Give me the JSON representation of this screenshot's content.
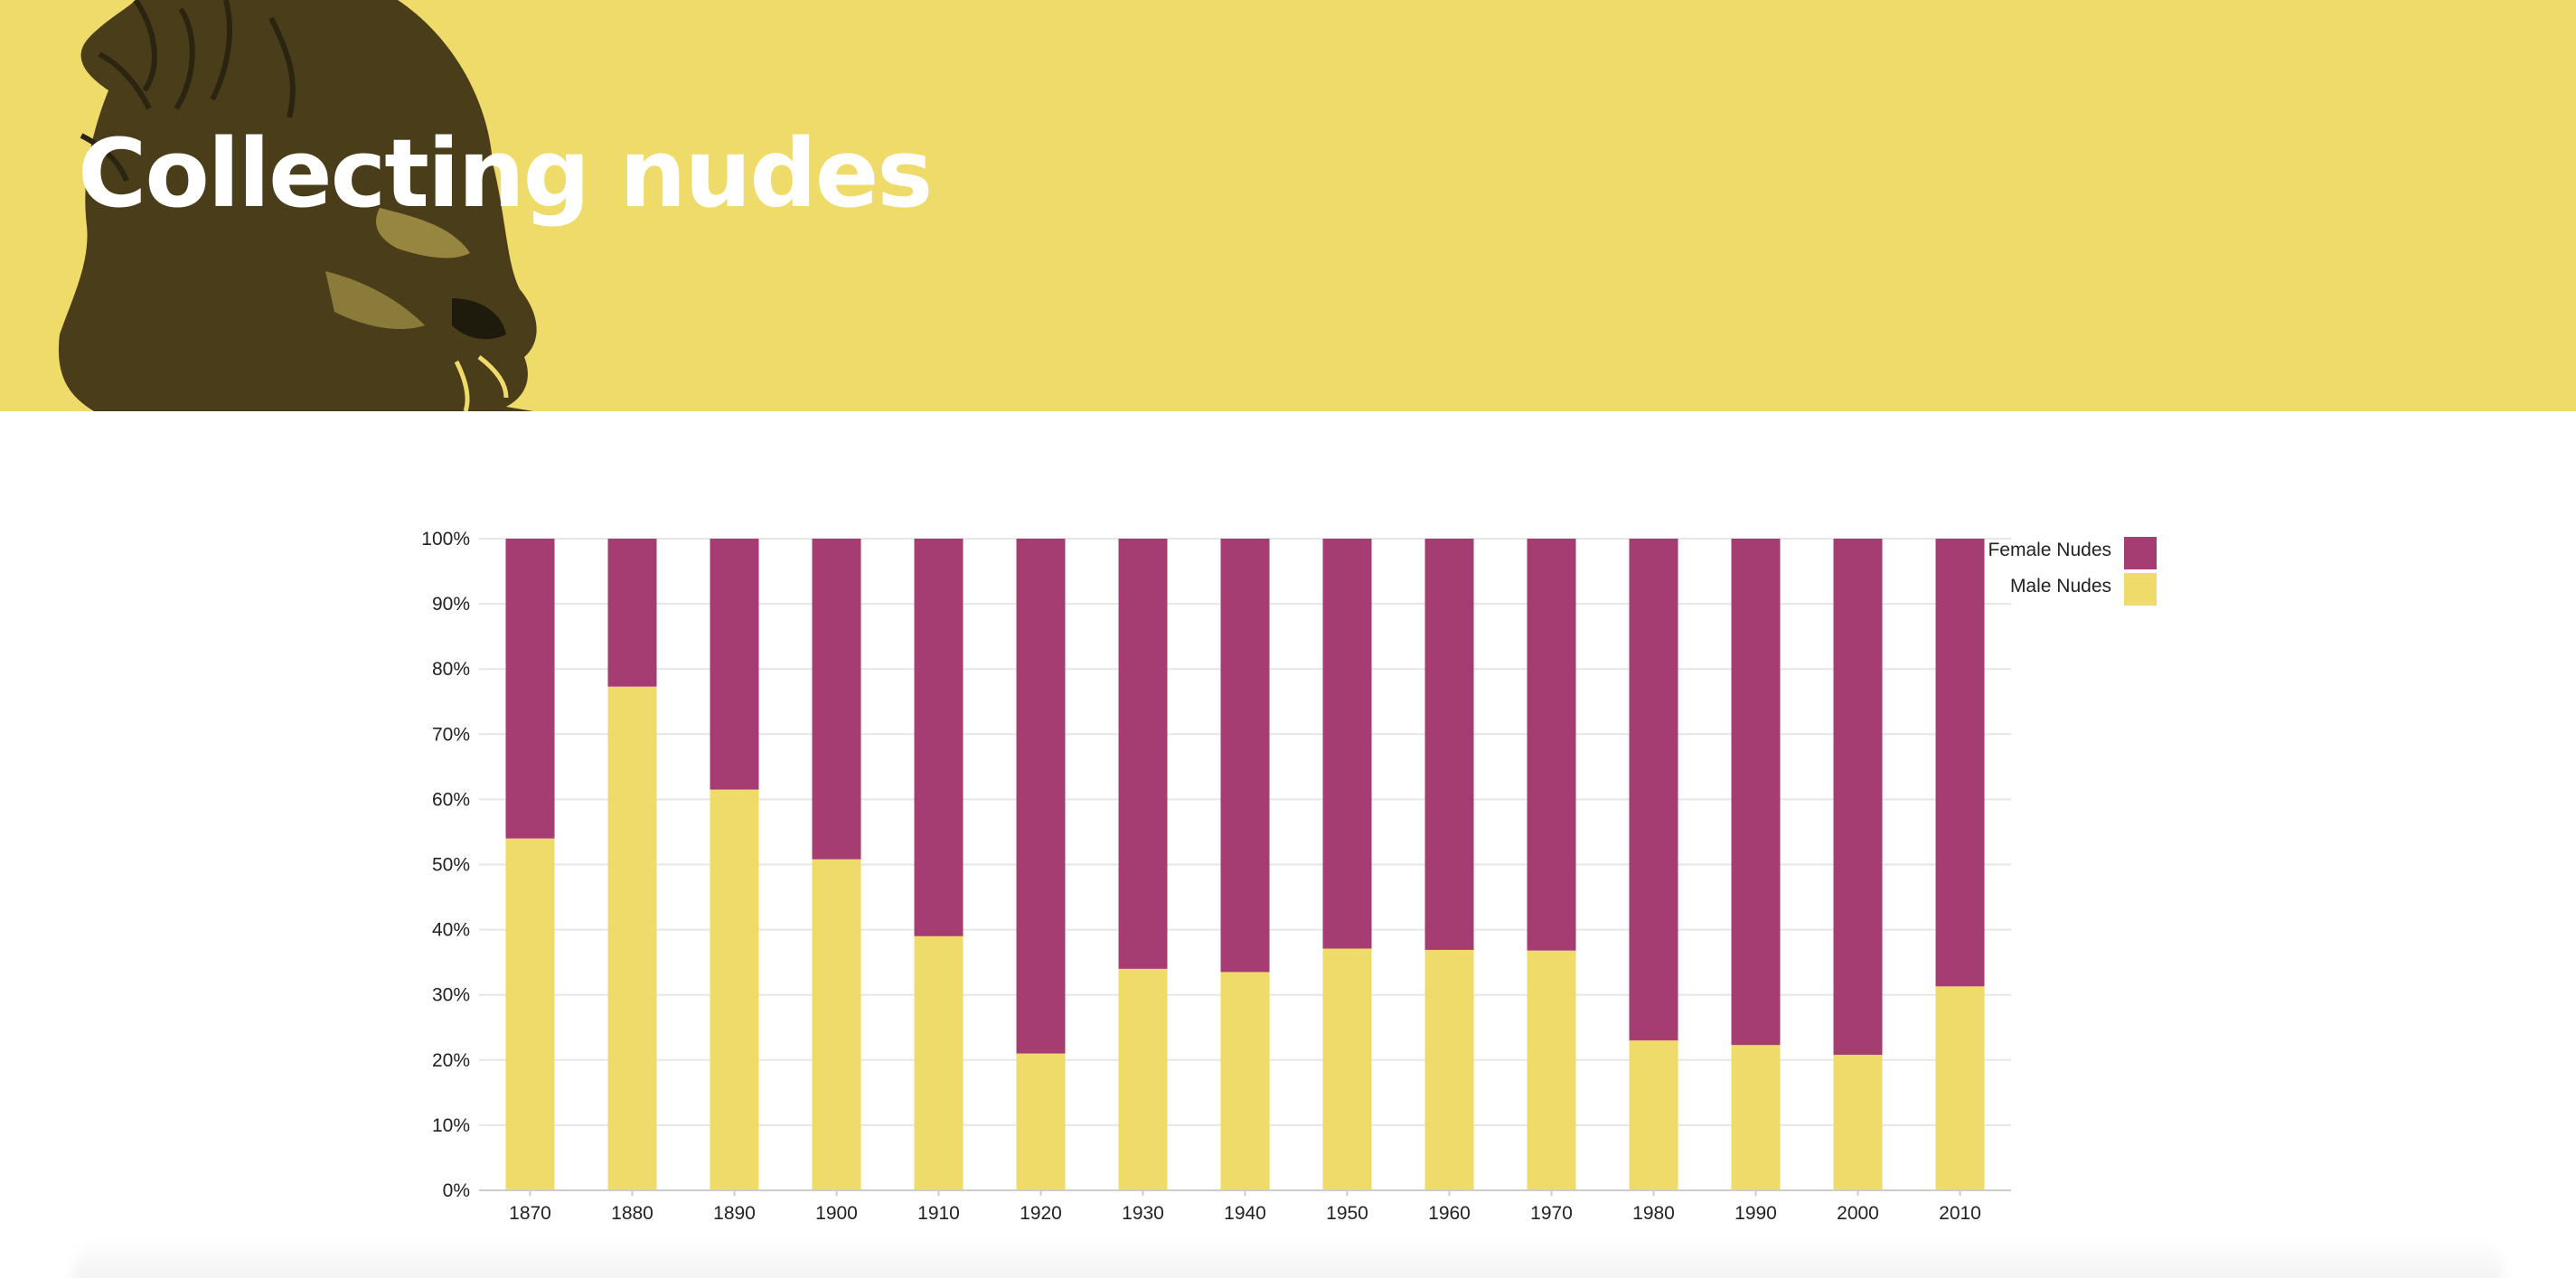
{
  "header": {
    "title": "Collecting nudes",
    "background_color": "#efdb6a",
    "illustration": "gorilla-head-illustration"
  },
  "chart_data": {
    "type": "bar",
    "stacked": true,
    "categories": [
      "1870",
      "1880",
      "1890",
      "1900",
      "1910",
      "1920",
      "1930",
      "1940",
      "1950",
      "1960",
      "1970",
      "1980",
      "1990",
      "2000",
      "2010"
    ],
    "series": [
      {
        "name": "Male Nudes",
        "color": "#efdb6a",
        "values": [
          54,
          77.3,
          61.5,
          50.8,
          39,
          21,
          34,
          33.5,
          37.1,
          36.9,
          36.8,
          23,
          22.3,
          20.8,
          31.3
        ]
      },
      {
        "name": "Female Nudes",
        "color": "#a53d72",
        "values": [
          46,
          22.7,
          38.5,
          49.2,
          61,
          79,
          66,
          66.5,
          62.9,
          63.1,
          63.2,
          77,
          77.7,
          79.2,
          68.7
        ]
      }
    ],
    "ylim": [
      0,
      100
    ],
    "yticks": [
      0,
      10,
      20,
      30,
      40,
      50,
      60,
      70,
      80,
      90,
      100
    ],
    "ytick_suffix": "%",
    "grid": true,
    "legend": {
      "position": "top-right",
      "entries": [
        "Female Nudes",
        "Male Nudes"
      ]
    }
  }
}
